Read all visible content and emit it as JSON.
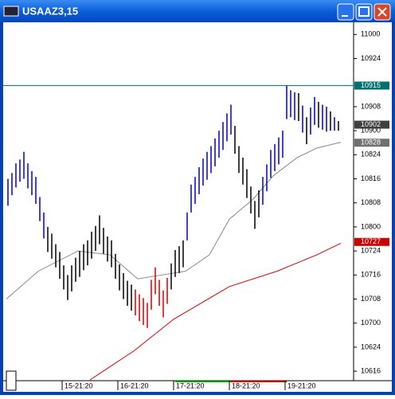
{
  "chart_data": {
    "type": "ohlc",
    "title": "USAAZ3,15",
    "xlim": [
      0,
      84
    ],
    "ylim": [
      106.41,
      110.11
    ],
    "yticks": [
      {
        "value": 110,
        "label": "11000"
      },
      {
        "value": 109.75,
        "label": "10924"
      },
      {
        "value": 109.25,
        "label": "10908"
      },
      {
        "value": 109,
        "label": "10900"
      },
      {
        "value": 108.75,
        "label": "10824"
      },
      {
        "value": 108.5,
        "label": "10816"
      },
      {
        "value": 108.25,
        "label": "10808"
      },
      {
        "value": 108,
        "label": "10800"
      },
      {
        "value": 107.75,
        "label": "10724"
      },
      {
        "value": 107.5,
        "label": "10716"
      },
      {
        "value": 107.25,
        "label": "10708"
      },
      {
        "value": 107,
        "label": "10700"
      },
      {
        "value": 106.75,
        "label": "10624"
      },
      {
        "value": 106.5,
        "label": "10616"
      }
    ],
    "xticks": [
      {
        "value": 14,
        "label": "15-21:20"
      },
      {
        "value": 28,
        "label": "16-21:20"
      },
      {
        "value": 42,
        "label": "17-21:20"
      },
      {
        "value": 56,
        "label": "18-21:20"
      },
      {
        "value": 70,
        "label": "19-21:20"
      }
    ],
    "high": [
      108.5,
      108.56,
      108.66,
      108.7,
      108.78,
      108.66,
      108.58,
      108.52,
      108.31,
      108.15,
      108.0,
      107.93,
      107.82,
      107.74,
      107.6,
      107.5,
      107.6,
      107.68,
      107.75,
      107.82,
      107.86,
      107.95,
      108.01,
      108.12,
      107.99,
      107.9,
      107.86,
      107.72,
      107.61,
      107.52,
      107.44,
      107.4,
      107.35,
      107.3,
      107.26,
      107.21,
      107.45,
      107.58,
      107.45,
      107.34,
      107.47,
      107.62,
      107.76,
      107.8,
      107.86,
      108.15,
      108.44,
      108.52,
      108.62,
      108.71,
      108.78,
      108.84,
      108.92,
      109.0,
      109.09,
      109.18,
      109.27,
      109.05,
      108.84,
      108.72,
      108.6,
      108.42,
      108.27,
      108.38,
      108.52,
      108.65,
      108.8,
      108.86,
      108.93,
      109.0,
      109.47,
      109.42,
      109.4,
      109.39,
      109.26,
      109.14,
      109.24,
      109.35,
      109.3,
      109.27,
      109.25,
      109.2,
      109.14,
      109.1
    ],
    "low": [
      108.22,
      108.33,
      108.41,
      108.47,
      108.5,
      108.4,
      108.33,
      108.24,
      108.06,
      107.88,
      107.74,
      107.67,
      107.58,
      107.46,
      107.35,
      107.24,
      107.33,
      107.43,
      107.48,
      107.55,
      107.6,
      107.67,
      107.75,
      107.82,
      107.72,
      107.64,
      107.58,
      107.46,
      107.34,
      107.25,
      107.18,
      107.13,
      107.08,
      107.02,
      106.98,
      106.95,
      107.14,
      107.3,
      107.18,
      107.06,
      107.2,
      107.35,
      107.48,
      107.52,
      107.58,
      107.86,
      108.15,
      108.24,
      108.34,
      108.43,
      108.49,
      108.56,
      108.63,
      108.72,
      108.8,
      108.89,
      108.96,
      108.76,
      108.56,
      108.44,
      108.3,
      108.14,
      107.98,
      108.1,
      108.23,
      108.37,
      108.51,
      108.58,
      108.65,
      108.72,
      109.12,
      109.14,
      109.11,
      109.1,
      108.98,
      108.86,
      108.96,
      109.06,
      109.03,
      109.01,
      108.99,
      109.0,
      109.0,
      109.0
    ],
    "colors": [
      "#0000cc",
      "#0000cc",
      "#0000cc",
      "#0000cc",
      "#0000cc",
      "#0000cc",
      "#0000cc",
      "#0000cc",
      "#0000cc",
      "#0000cc",
      "#000000",
      "#000000",
      "#000000",
      "#000000",
      "#000000",
      "#000000",
      "#000000",
      "#000000",
      "#000000",
      "#000000",
      "#000000",
      "#000000",
      "#000000",
      "#000000",
      "#000000",
      "#000000",
      "#000000",
      "#000000",
      "#000000",
      "#000000",
      "#000000",
      "#000000",
      "#cc0000",
      "#cc0000",
      "#cc0000",
      "#cc0000",
      "#cc0000",
      "#cc0000",
      "#cc0000",
      "#cc0000",
      "#cc0000",
      "#000000",
      "#000000",
      "#000000",
      "#000000",
      "#0000cc",
      "#0000cc",
      "#0000cc",
      "#0000cc",
      "#0000cc",
      "#0000cc",
      "#0000cc",
      "#0000cc",
      "#0000cc",
      "#0000cc",
      "#0000cc",
      "#0000cc",
      "#000000",
      "#000000",
      "#000000",
      "#000000",
      "#000000",
      "#000000",
      "#000000",
      "#0000cc",
      "#0000cc",
      "#0000cc",
      "#0000cc",
      "#0000cc",
      "#0000cc",
      "#0000cc",
      "#0000cc",
      "#0000cc",
      "#000000",
      "#0000cc",
      "#000000",
      "#0000cc",
      "#0000cc",
      "#000000",
      "#0000cc",
      "#0000cc",
      "#000000",
      "#0000cc",
      "#000000"
    ],
    "lines": [
      {
        "color": "#888888",
        "x": [
          0,
          8,
          18,
          26,
          33,
          39,
          45,
          51,
          56,
          62,
          67,
          73,
          78,
          84
        ],
        "values": [
          107.25,
          107.54,
          107.75,
          107.71,
          107.46,
          107.5,
          107.54,
          107.71,
          108.08,
          108.29,
          108.53,
          108.72,
          108.82,
          108.88
        ]
      },
      {
        "color": "#dd0000",
        "x": [
          21,
          32,
          42,
          56,
          68,
          78,
          84
        ],
        "values": [
          106.41,
          106.71,
          107.04,
          107.38,
          107.54,
          107.71,
          107.83
        ]
      }
    ],
    "hline": {
      "value": 109.46875,
      "color": "#008080"
    },
    "markers": [
      {
        "value": 109.46875,
        "label": "10915",
        "color": "#007070"
      },
      {
        "value": 109.0625,
        "label": "10902",
        "color": "#404040"
      },
      {
        "value": 108.875,
        "label": "10828",
        "color": "#707070"
      },
      {
        "value": 107.84375,
        "label": "10727",
        "color": "#cc0000"
      }
    ]
  }
}
